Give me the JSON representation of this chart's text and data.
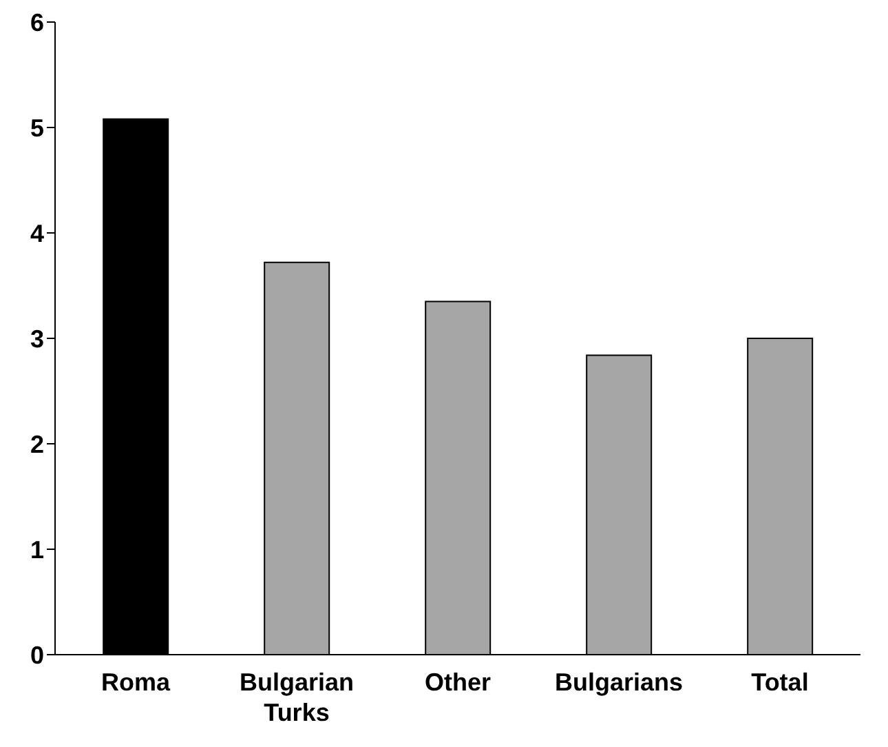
{
  "chart_data": {
    "type": "bar",
    "categories": [
      "Roma",
      "Bulgarian Turks",
      "Other",
      "Bulgarians",
      "Total"
    ],
    "values": [
      5.08,
      3.72,
      3.35,
      2.84,
      3.0
    ],
    "colors": [
      "#000000",
      "#a6a6a6",
      "#a6a6a6",
      "#a6a6a6",
      "#a6a6a6"
    ],
    "ylim": [
      0,
      6
    ],
    "yticks": [
      0,
      1,
      2,
      3,
      4,
      5,
      6
    ],
    "grid": false
  }
}
